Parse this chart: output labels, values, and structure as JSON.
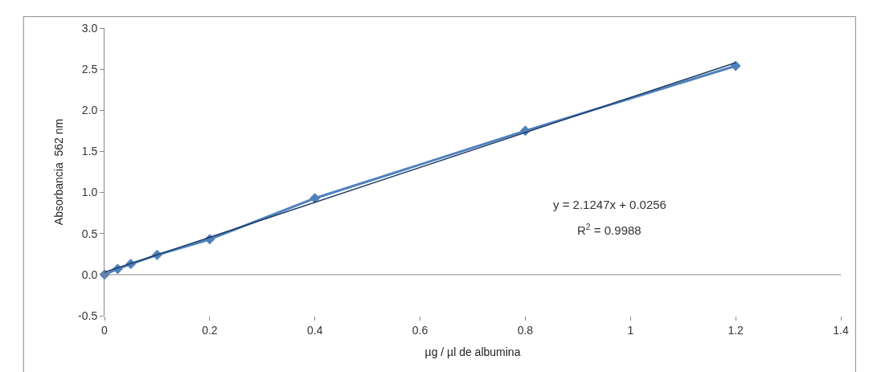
{
  "chart_data": {
    "type": "line",
    "xlabel": "µg / µl de albumina",
    "ylabel": "Absorbancia  562 nm",
    "x": [
      0,
      0.025,
      0.05,
      0.1,
      0.2,
      0.4,
      0.8,
      1.2
    ],
    "series": [
      {
        "color": "#4f81bd",
        "marker": "diamond",
        "values": [
          0,
          0.07,
          0.13,
          0.24,
          0.43,
          0.93,
          1.75,
          2.54
        ]
      },
      {
        "color": "#1f3b63",
        "marker": "none",
        "x": [
          0,
          1.2
        ],
        "values": [
          0.03,
          2.58
        ]
      }
    ],
    "xlim": [
      0,
      1.4
    ],
    "xticks": [
      0,
      0.2,
      0.4,
      0.6,
      0.8,
      1,
      1.2,
      1.4
    ],
    "ylim": [
      -0.5,
      3.0
    ],
    "yticks": [
      {
        "value": -0.5,
        "label": "-0.5"
      },
      {
        "value": 0,
        "label": "0.0"
      },
      {
        "value": 0.5,
        "label": "0.5"
      },
      {
        "value": 1,
        "label": "1.0"
      },
      {
        "value": 1.5,
        "label": "1.5"
      },
      {
        "value": 2,
        "label": "2.0"
      },
      {
        "value": 2.5,
        "label": "2.5"
      },
      {
        "value": 3,
        "label": "3.0"
      }
    ],
    "ref_lines": [
      {
        "axis": "y",
        "value": 0,
        "color": "#888888"
      }
    ],
    "annotations": [
      "y = 2.1247x + 0.0256",
      "R$^{2}$ = 0.9988"
    ]
  }
}
